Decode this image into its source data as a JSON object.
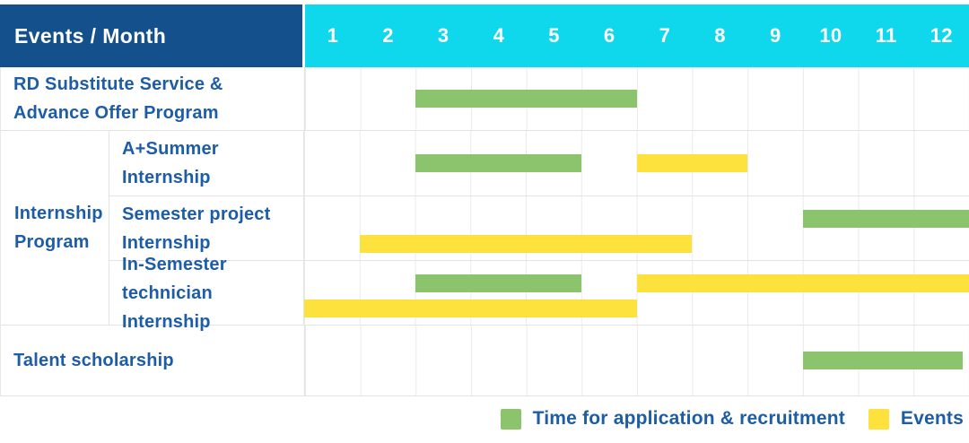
{
  "title": "Events / Month",
  "months": [
    "1",
    "2",
    "3",
    "4",
    "5",
    "6",
    "7",
    "8",
    "9",
    "10",
    "11",
    "12"
  ],
  "group_label": {
    "text": "Internship Program",
    "lines": [
      "Internship",
      "Program"
    ]
  },
  "colors": {
    "header_bg": "#14508c",
    "months_bg": "#0fd8ec",
    "green": "#8cc46e",
    "yellow": "#fde23e",
    "label_text": "#1d5ca6",
    "grid_line": "#eaeaea"
  },
  "legend": [
    {
      "label": "Time for application & recruitment",
      "color": "green"
    },
    {
      "label": "Events",
      "color": "yellow"
    }
  ],
  "chart_data": {
    "type": "gantt",
    "title": "Events / Month",
    "x_axis_label": "Month",
    "x_tick_labels": [
      "1",
      "2",
      "3",
      "4",
      "5",
      "6",
      "7",
      "8",
      "9",
      "10",
      "11",
      "12"
    ],
    "x_range": [
      1,
      12
    ],
    "grid": true,
    "legend_position": "bottom-right",
    "series_legend": [
      {
        "name": "Time for application & recruitment",
        "color_key": "green"
      },
      {
        "name": "Events",
        "color_key": "yellow"
      }
    ],
    "rows": [
      {
        "group": "",
        "label": "RD Substitute Service & Advance Offer Program",
        "label_lines": [
          "RD Substitute Service &",
          "Advance Offer Program"
        ],
        "lanes": [
          [
            {
              "series": "Time for application & recruitment",
              "color": "green",
              "start_month": 3,
              "end_month": 6
            }
          ]
        ]
      },
      {
        "group": "Internship Program",
        "label": "A+Summer Internship",
        "label_lines": [
          "A+Summer",
          "Internship"
        ],
        "lanes": [
          [
            {
              "series": "Time for application & recruitment",
              "color": "green",
              "start_month": 3,
              "end_month": 5
            },
            {
              "series": "Events",
              "color": "yellow",
              "start_month": 7,
              "end_month": 8
            }
          ]
        ]
      },
      {
        "group": "Internship Program",
        "label": "Semester project Internship",
        "label_lines": [
          "Semester project",
          "Internship"
        ],
        "lanes": [
          [
            {
              "series": "Time for application & recruitment",
              "color": "green",
              "start_month": 10,
              "end_month": 12
            }
          ],
          [
            {
              "series": "Events",
              "color": "yellow",
              "start_month": 2,
              "end_month": 7
            }
          ]
        ]
      },
      {
        "group": "Internship Program",
        "label": "In-Semester technician Internship",
        "label_lines": [
          "In-Semester",
          "technician Internship"
        ],
        "lanes": [
          [
            {
              "series": "Time for application & recruitment",
              "color": "green",
              "start_month": 3,
              "end_month": 5
            },
            {
              "series": "Events",
              "color": "yellow",
              "start_month": 7,
              "end_month": 12
            }
          ],
          [
            {
              "series": "Events",
              "color": "yellow",
              "start_month": 1,
              "end_month": 6
            }
          ]
        ]
      },
      {
        "group": "",
        "label": "Talent scholarship",
        "label_lines": [
          "Talent scholarship"
        ],
        "lanes": [
          [
            {
              "series": "Time for application & recruitment",
              "color": "green",
              "start_month": 10,
              "end_month": 12,
              "end_trim": 0.12
            }
          ]
        ]
      }
    ]
  }
}
